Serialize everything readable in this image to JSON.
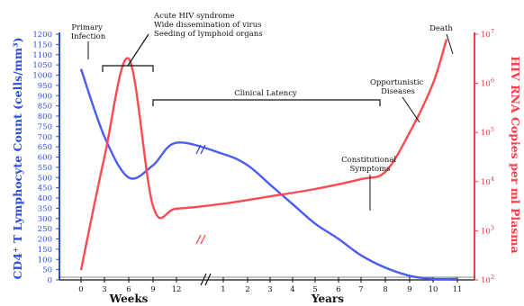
{
  "chart_data": {
    "type": "line",
    "x_axis": {
      "segments": [
        {
          "unit": "Weeks",
          "ticks": [
            0,
            3,
            6,
            9,
            12
          ]
        },
        {
          "unit": "Years",
          "ticks": [
            1,
            2,
            3,
            4,
            5,
            6,
            7,
            8,
            9,
            10,
            11
          ]
        }
      ],
      "break_marks": true
    },
    "y_left": {
      "label": "CD4⁺ T Lymphocyte Count (cells/mm³)",
      "ticks": [
        0,
        50,
        100,
        150,
        200,
        250,
        300,
        350,
        400,
        450,
        500,
        550,
        600,
        650,
        700,
        750,
        800,
        850,
        900,
        950,
        1000,
        1050,
        1100,
        1150,
        1200
      ],
      "ylim": [
        0,
        1200
      ],
      "color": "#2b4de0"
    },
    "y_right": {
      "label": "HIV RNA Copies per ml Plasma",
      "scale": "log",
      "ticks": [
        {
          "base": "10",
          "exp": "2"
        },
        {
          "base": "10",
          "exp": "3"
        },
        {
          "base": "10",
          "exp": "4"
        },
        {
          "base": "10",
          "exp": "5"
        },
        {
          "base": "10",
          "exp": "6"
        },
        {
          "base": "10",
          "exp": "7"
        }
      ],
      "range_exponent": [
        2,
        7
      ],
      "color": "#e8303a"
    },
    "series": [
      {
        "color": "#4a5cf2",
        "axis": "left",
        "points": [
          {
            "t": "week 0",
            "value": 1030
          },
          {
            "t": "week 3",
            "value": 700
          },
          {
            "t": "week 6",
            "value": 500
          },
          {
            "t": "week 9",
            "value": 560
          },
          {
            "t": "week 12",
            "value": 670
          },
          {
            "t": "year 1",
            "value": 615
          },
          {
            "t": "year 2",
            "value": 560
          },
          {
            "t": "year 3",
            "value": 465
          },
          {
            "t": "year 4",
            "value": 370
          },
          {
            "t": "year 5",
            "value": 275
          },
          {
            "t": "year 6",
            "value": 200
          },
          {
            "t": "year 7",
            "value": 120
          },
          {
            "t": "year 8",
            "value": 60
          },
          {
            "t": "year 9",
            "value": 20
          },
          {
            "t": "year 10",
            "value": 5
          },
          {
            "t": "year 11",
            "value": 5
          }
        ]
      },
      {
        "color": "#ff4a52",
        "axis": "right",
        "points": [
          {
            "t": "week 0",
            "value_log10": 2.2
          },
          {
            "t": "week 3",
            "value_log10": 4.5
          },
          {
            "t": "week 6",
            "value_log10": 6.5
          },
          {
            "t": "week 9",
            "value_log10": 3.5
          },
          {
            "t": "week 12",
            "value_log10": 3.45
          },
          {
            "t": "year 1",
            "value_log10": 3.55
          },
          {
            "t": "year 3",
            "value_log10": 3.7
          },
          {
            "t": "year 5",
            "value_log10": 3.85
          },
          {
            "t": "year 7",
            "value_log10": 4.05
          },
          {
            "t": "year 8",
            "value_log10": 4.2
          },
          {
            "t": "year 9",
            "value_log10": 5.0
          },
          {
            "t": "year 10",
            "value_log10": 6.0
          },
          {
            "t": "year 10.5",
            "value_log10": 6.9
          }
        ]
      }
    ],
    "annotations": {
      "primary_infection": [
        "Primary",
        "Infection"
      ],
      "acute_hiv": [
        "Acute HIV syndrome",
        "Wide dissemination of virus",
        "Seeding of lymphoid organs"
      ],
      "clinical_latency": "Clinical Latency",
      "constitutional": [
        "Constitutional",
        "Symptoms"
      ],
      "opportunistic": [
        "Opportunistic",
        "Diseases"
      ],
      "death": "Death"
    }
  }
}
